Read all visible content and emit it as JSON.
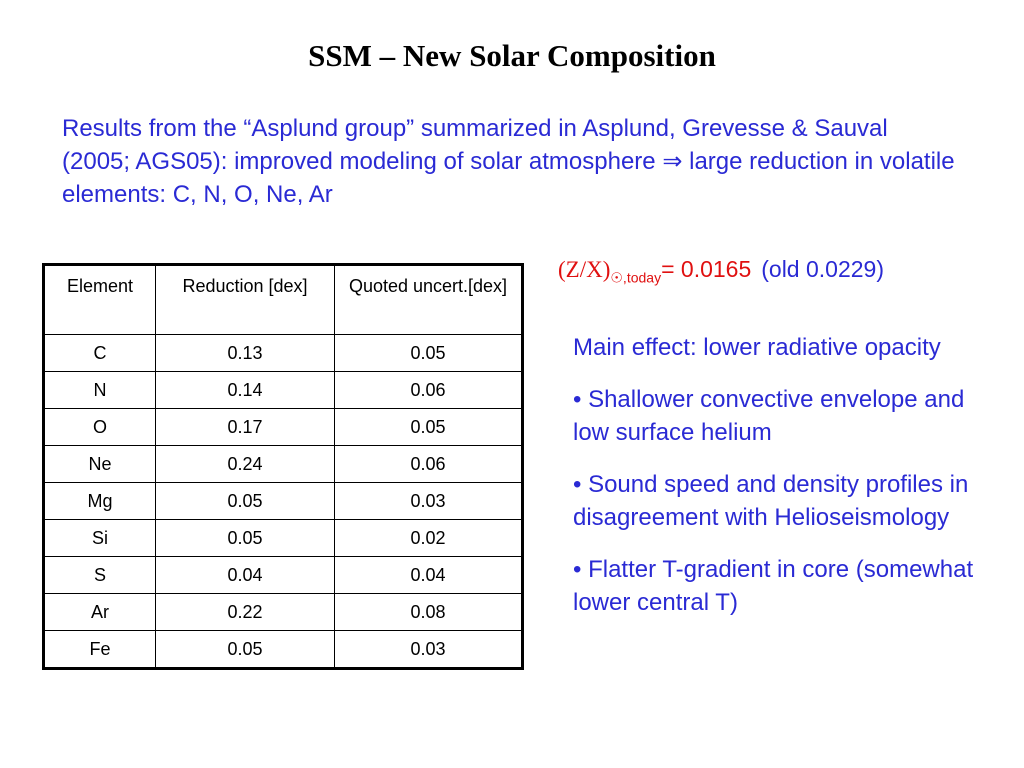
{
  "title": "SSM – New Solar Composition",
  "intro": {
    "text": "Results from the “Asplund group” summarized  in Asplund, Grevesse & Sauval (2005; AGS05): improved modeling of solar atmosphere ",
    "arrow": "⇒",
    "text2": " large reduction in volatile elements: C, N, O, Ne, Ar"
  },
  "table": {
    "headers": [
      "Element",
      "Reduction [dex]",
      "Quoted uncert.[dex]"
    ],
    "rows": [
      [
        "C",
        "0.13",
        "0.05"
      ],
      [
        "N",
        "0.14",
        "0.06"
      ],
      [
        "O",
        "0.17",
        "0.05"
      ],
      [
        "Ne",
        "0.24",
        "0.06"
      ],
      [
        "Mg",
        "0.05",
        "0.03"
      ],
      [
        "Si",
        "0.05",
        "0.02"
      ],
      [
        "S",
        "0.04",
        "0.04"
      ],
      [
        "Ar",
        "0.22",
        "0.08"
      ],
      [
        "Fe",
        "0.05",
        "0.03"
      ]
    ]
  },
  "metallicity": {
    "symbol": "(Z/X)",
    "subscript": "☉,today",
    "value": "= 0.0165",
    "old": "(old 0.0229)"
  },
  "effects": [
    "Main effect: lower radiative opacity",
    "• Shallower convective envelope and low surface helium",
    "• Sound speed and density profiles in disagreement with Helioseismology",
    "• Flatter T-gradient in core (somewhat lower central T)"
  ],
  "colors": {
    "blue_text": "#2a2ad4",
    "red_text": "#e01010"
  }
}
